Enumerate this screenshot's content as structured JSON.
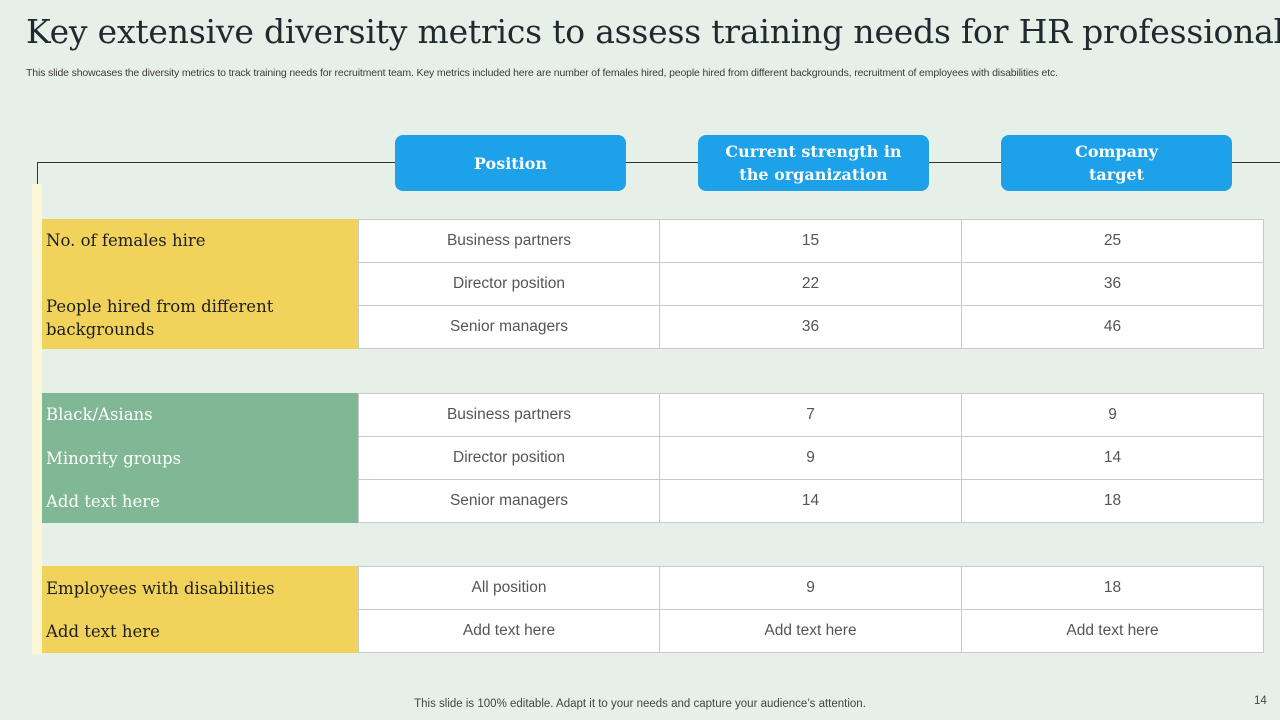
{
  "title": "Key extensive diversity metrics to assess training needs for HR professionals",
  "subtitle": "This slide showcases the diversity metrics to track training needs for recruitment team. Key metrics included here are number of females hired, people hired from different backgrounds, recruitment of employees with disabilities etc.",
  "headers": [
    "Position",
    "Current strength in\nthe organization",
    "Company\ntarget"
  ],
  "labels": {
    "group1": [
      "No. of females hire",
      "People hired from different backgrounds"
    ],
    "group2": [
      "Black/Asians",
      "Minority groups",
      "Add text here"
    ],
    "group3": [
      "Employees with disabilities",
      "Add text here"
    ]
  },
  "rows": [
    [
      "Business partners",
      "15",
      "25"
    ],
    [
      "Director position",
      "22",
      "36"
    ],
    [
      "Senior managers",
      "36",
      "46"
    ],
    [
      "Business partners",
      "7",
      "9"
    ],
    [
      "Director position",
      "9",
      "14"
    ],
    [
      "Senior managers",
      "14",
      "18"
    ],
    [
      "All position",
      "9",
      "18"
    ],
    [
      "Add text here",
      "Add text here",
      "Add text here"
    ]
  ],
  "colors": {
    "header_blue": "#1da1e8",
    "yellow": "#f1d35c",
    "green": "#80b794",
    "background": "#e6f0e9"
  },
  "footer": "This slide is 100% editable. Adapt it to your needs and capture your audience’s attention.",
  "page_number": "14"
}
